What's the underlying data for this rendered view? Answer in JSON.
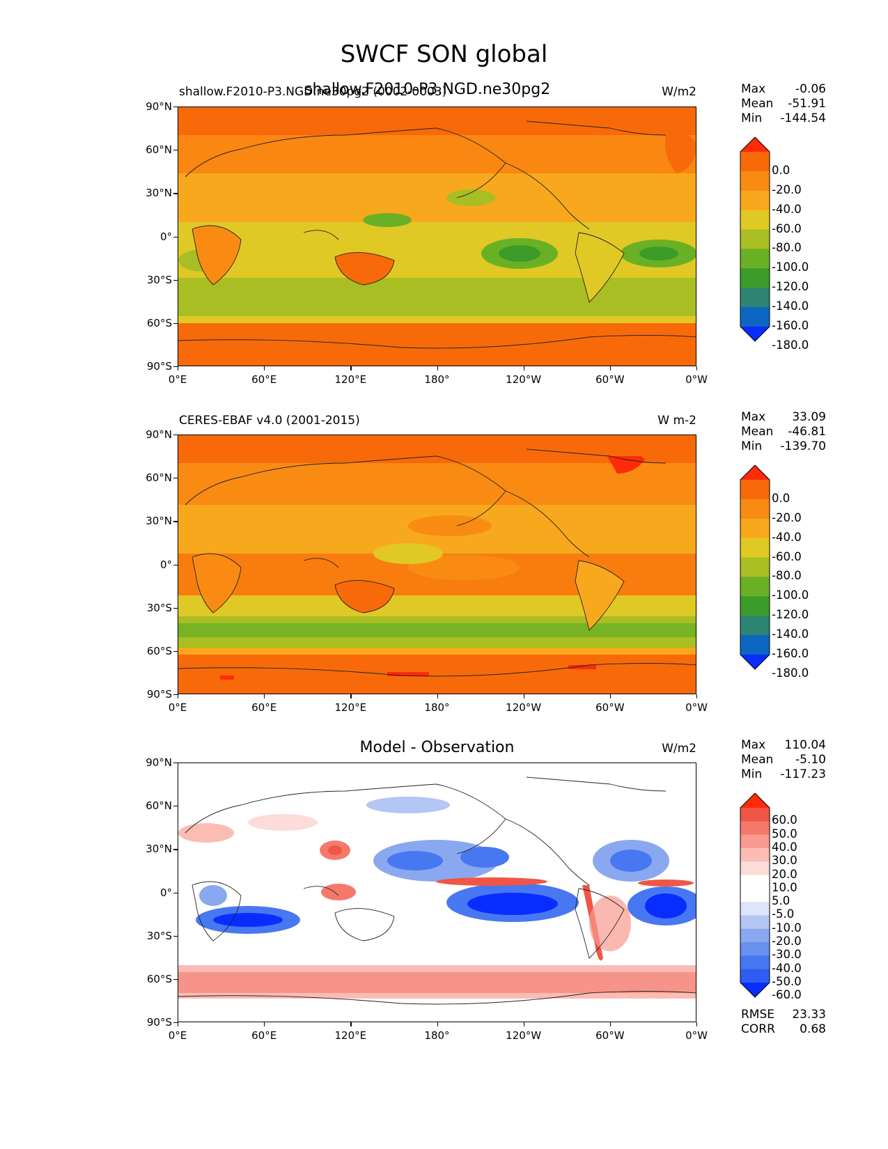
{
  "title": "SWCF SON global",
  "overlay_title": "shallow.F2010-P3.NGD.ne30pg2",
  "panels": [
    {
      "left_title": "shallow.F2010-P3.NGD.ne30pg2 (0002-0003)",
      "center_title": "",
      "units": "W/m2",
      "stats": {
        "max_label": "Max",
        "max": "-0.06",
        "mean_label": "Mean",
        "mean": "-51.91",
        "min_label": "Min",
        "min": "-144.54"
      },
      "colorbar": {
        "colors": [
          "#e8dd1a",
          "#0a2dff",
          "#0d67c2",
          "#2e8472",
          "#3b9c2a",
          "#6ab024",
          "#a8be22",
          "#e0c925",
          "#f8a81c",
          "#f98b13",
          "#f86a09",
          "#fe2b0b"
        ],
        "labels": [
          "0.0",
          "-20.0",
          "-40.0",
          "-60.0",
          "-80.0",
          "-100.0",
          "-120.0",
          "-140.0",
          "-160.0",
          "-180.0"
        ]
      }
    },
    {
      "left_title": "CERES-EBAF v4.0 (2001-2015)",
      "center_title": "",
      "units": "W m-2",
      "stats": {
        "max_label": "Max",
        "max": "33.09",
        "mean_label": "Mean",
        "mean": "-46.81",
        "min_label": "Min",
        "min": "-139.70"
      },
      "colorbar": {
        "colors": [
          "#e8dd1a",
          "#0a2dff",
          "#0d67c2",
          "#2e8472",
          "#3b9c2a",
          "#6ab024",
          "#a8be22",
          "#e0c925",
          "#f8a81c",
          "#f98b13",
          "#f86a09",
          "#fe2b0b"
        ],
        "labels": [
          "0.0",
          "-20.0",
          "-40.0",
          "-60.0",
          "-80.0",
          "-100.0",
          "-120.0",
          "-140.0",
          "-160.0",
          "-180.0"
        ]
      }
    },
    {
      "left_title": "",
      "center_title": "Model - Observation",
      "units": "W/m2",
      "stats": {
        "max_label": "Max",
        "max": "110.04",
        "mean_label": "Mean",
        "mean": "-5.10",
        "min_label": "Min",
        "min": "-117.23"
      },
      "colorbar": {
        "colors": [
          "#0a2dff",
          "#2e5cf5",
          "#4877f2",
          "#6890ee",
          "#8aa8ef",
          "#b3c6f4",
          "#dde5fb",
          "#ffffff",
          "#ffffff",
          "#fcdcd8",
          "#fbbcb4",
          "#f89a8f",
          "#f5796b",
          "#f05546",
          "#fe2b0b"
        ],
        "labels": [
          "60.0",
          "50.0",
          "40.0",
          "30.0",
          "20.0",
          "10.0",
          "5.0",
          "-5.0",
          "-10.0",
          "-20.0",
          "-30.0",
          "-40.0",
          "-50.0",
          "-60.0"
        ]
      },
      "rmse_label": "RMSE",
      "rmse": "23.33",
      "corr_label": "CORR",
      "corr": "0.68"
    }
  ],
  "lat_ticks": [
    "90°N",
    "60°N",
    "30°N",
    "0°",
    "30°S",
    "60°S",
    "90°S"
  ],
  "lon_ticks": [
    "0°E",
    "60°E",
    "120°E",
    "180°",
    "120°W",
    "60°W",
    "0°W"
  ],
  "map_colors": {
    "ocean_orange": "#f86a09",
    "mid_orange": "#f98b13",
    "light_orange": "#f8a81c",
    "yellow": "#e0c925",
    "olive": "#a8be22",
    "green": "#6ab024",
    "dark_green": "#3b9c2a",
    "teal": "#2e8472",
    "blue": "#0d67c2",
    "red": "#fe2b0b"
  }
}
